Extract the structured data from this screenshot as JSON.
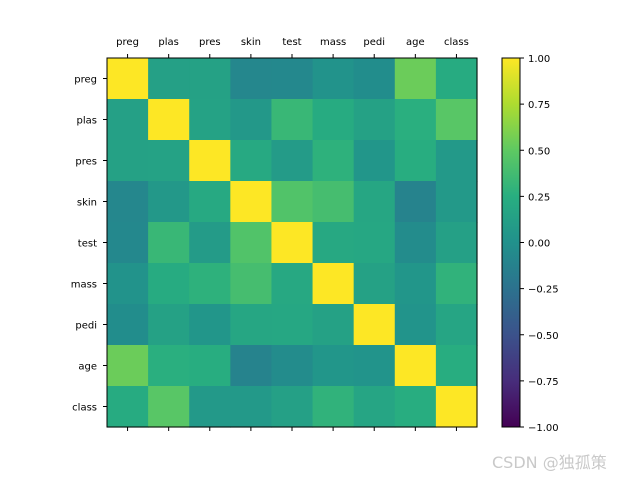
{
  "chart_data": {
    "type": "heatmap",
    "title": "",
    "xlabel": "",
    "ylabel": "",
    "x_tick_position": "top",
    "grid": false,
    "colormap": "viridis",
    "legend": "colorbar-right",
    "rows": [
      "preg",
      "plas",
      "pres",
      "skin",
      "test",
      "mass",
      "pedi",
      "age",
      "class"
    ],
    "columns": [
      "preg",
      "plas",
      "pres",
      "skin",
      "test",
      "mass",
      "pedi",
      "age",
      "class"
    ],
    "values": [
      [
        1.0,
        0.13,
        0.14,
        -0.08,
        -0.07,
        0.02,
        -0.03,
        0.54,
        0.22
      ],
      [
        0.13,
        1.0,
        0.15,
        0.06,
        0.33,
        0.22,
        0.14,
        0.26,
        0.47
      ],
      [
        0.14,
        0.15,
        1.0,
        0.21,
        0.09,
        0.28,
        0.04,
        0.24,
        0.07
      ],
      [
        -0.08,
        0.06,
        0.21,
        1.0,
        0.44,
        0.39,
        0.18,
        -0.11,
        0.07
      ],
      [
        -0.07,
        0.33,
        0.09,
        0.44,
        1.0,
        0.2,
        0.19,
        -0.04,
        0.13
      ],
      [
        0.02,
        0.22,
        0.28,
        0.39,
        0.2,
        1.0,
        0.14,
        0.04,
        0.29
      ],
      [
        -0.03,
        0.14,
        0.04,
        0.18,
        0.19,
        0.14,
        1.0,
        0.03,
        0.17
      ],
      [
        0.54,
        0.26,
        0.24,
        -0.11,
        -0.04,
        0.04,
        0.03,
        1.0,
        0.24
      ],
      [
        0.22,
        0.47,
        0.07,
        0.07,
        0.13,
        0.29,
        0.17,
        0.24,
        1.0
      ]
    ],
    "vmin": -1,
    "vmax": 1,
    "colorbar_ticks": [
      "1.00",
      "0.75",
      "0.50",
      "0.25",
      "0.00",
      "−0.25",
      "−0.50",
      "−0.75",
      "−1.00"
    ],
    "colorbar_tick_values": [
      1.0,
      0.75,
      0.5,
      0.25,
      0.0,
      -0.25,
      -0.5,
      -0.75,
      -1.0
    ]
  },
  "watermark": "CSDN @独孤策"
}
